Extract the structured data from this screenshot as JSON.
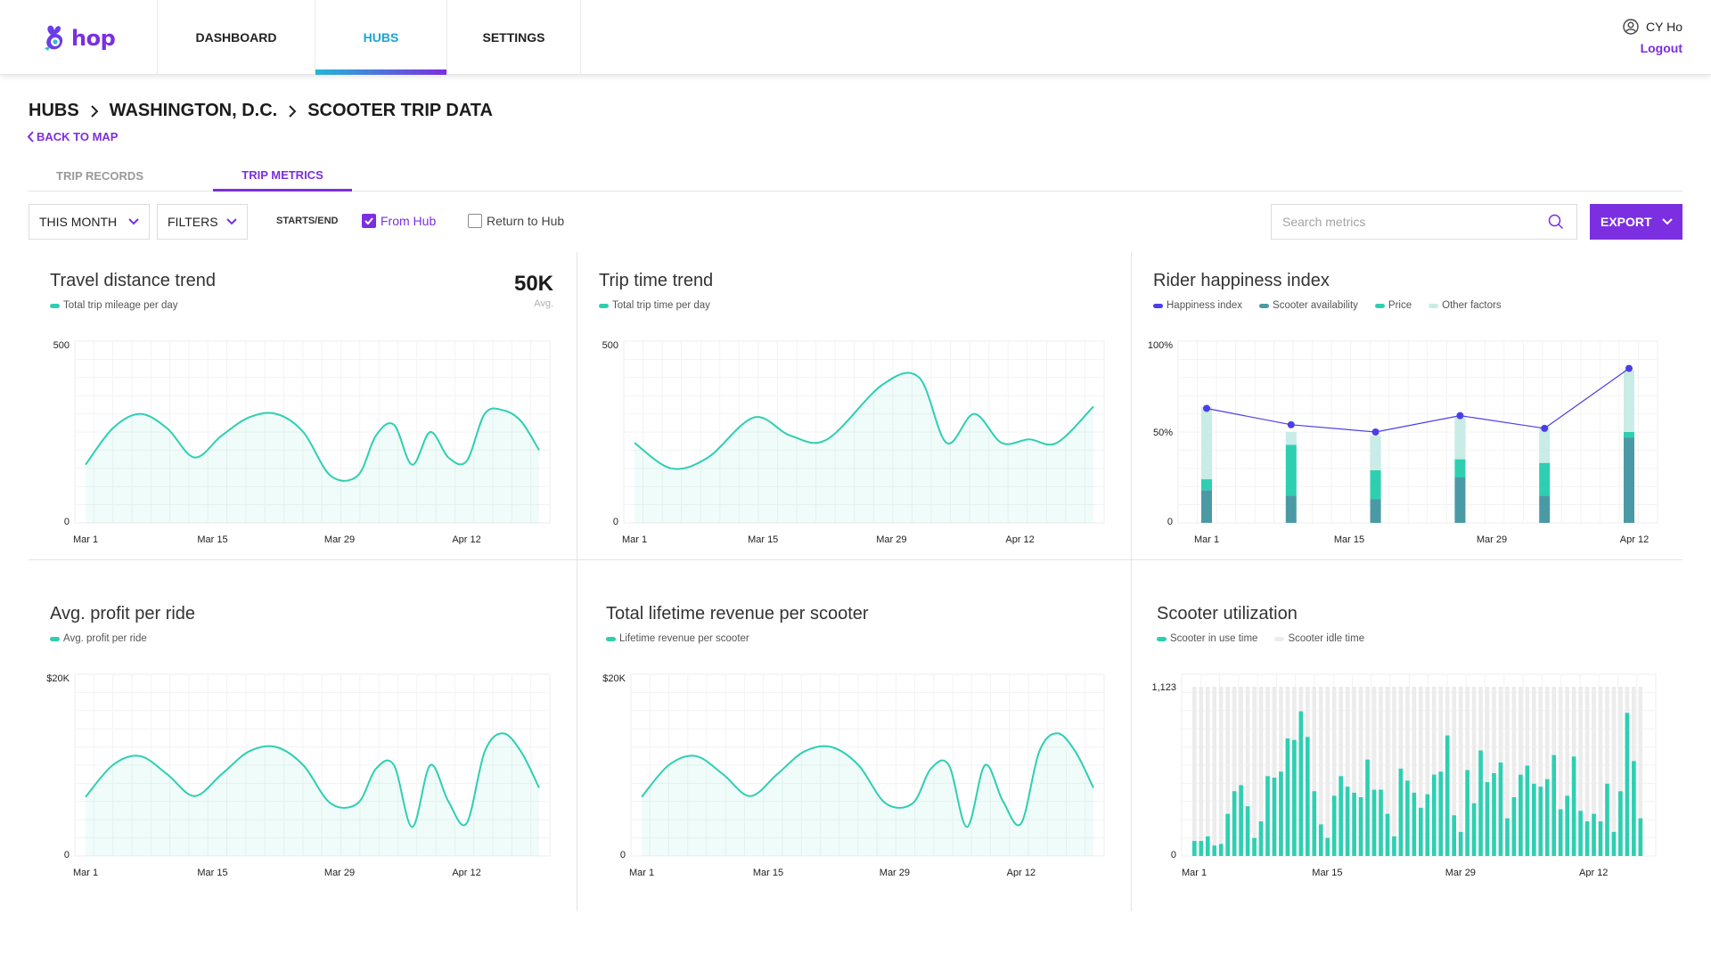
{
  "app": {
    "logo_text": "hop"
  },
  "nav": {
    "items": [
      {
        "label": "DASHBOARD"
      },
      {
        "label": "HUBS"
      },
      {
        "label": "SETTINGS"
      }
    ],
    "active": "HUBS"
  },
  "user": {
    "name": "CY Ho",
    "logout": "Logout"
  },
  "breadcrumb": {
    "items": [
      "HUBS",
      "WASHINGTON, D.C.",
      "SCOOTER TRIP DATA"
    ]
  },
  "back_link": "BACK TO MAP",
  "tabs": {
    "items": [
      {
        "label": "TRIP RECORDS"
      },
      {
        "label": "TRIP METRICS"
      }
    ],
    "active": "TRIP METRICS"
  },
  "toolbar": {
    "period_select": "THIS MONTH",
    "filters_select": "FILTERS",
    "starts_end_label": "STARTS/END",
    "from_hub": {
      "label": "From Hub",
      "checked": true
    },
    "return_to_hub": {
      "label": "Return to Hub",
      "checked": false
    },
    "search_placeholder": "Search metrics",
    "export_label": "EXPORT"
  },
  "colors": {
    "accent": "#7b2fe0",
    "teal": "#2ecfb1",
    "teal_dark": "#4a9aa6",
    "teal_light": "#c9ece6",
    "idle": "#ececec",
    "happiness": "#4b3ee8"
  },
  "panels": {
    "travel": {
      "title": "Travel distance trend",
      "legend": "Total trip mileage per day",
      "kpi_value": "50K",
      "kpi_label": "Avg."
    },
    "trip_time": {
      "title": "Trip time trend",
      "legend": "Total trip time per day"
    },
    "happiness": {
      "title": "Rider happiness index",
      "legend": [
        "Happiness index",
        "Scooter availability",
        "Price",
        "Other factors"
      ]
    },
    "profit": {
      "title": "Avg. profit per ride",
      "legend": "Avg. profit per ride"
    },
    "revenue": {
      "title": "Total lifetime revenue per scooter",
      "legend": "Lifetime revenue per scooter"
    },
    "utilization": {
      "title": "Scooter utilization",
      "legend": [
        "Scooter in use time",
        "Scooter idle time"
      ]
    }
  },
  "chart_data": [
    {
      "id": "travel",
      "type": "area",
      "title": "Travel distance trend",
      "series_name": "Total trip mileage per day",
      "x": [
        0,
        3,
        6,
        9,
        12,
        15,
        18,
        21,
        24,
        27,
        30,
        32,
        34,
        36,
        38,
        40,
        42,
        44,
        46,
        48,
        50
      ],
      "y": [
        160,
        260,
        300,
        260,
        180,
        240,
        290,
        300,
        250,
        130,
        130,
        240,
        270,
        160,
        250,
        180,
        170,
        300,
        310,
        280,
        200
      ],
      "x_ticks": [
        "Mar 1",
        "Mar 15",
        "Mar 29",
        "Apr 12"
      ],
      "x_tick_positions": [
        0,
        14,
        28,
        42
      ],
      "x_range": [
        0,
        50
      ],
      "y_ticks": [
        "0",
        "500"
      ],
      "ylim": [
        0,
        500
      ]
    },
    {
      "id": "trip_time",
      "type": "area",
      "title": "Trip time trend",
      "series_name": "Total trip time per day",
      "x": [
        0,
        4,
        8,
        13,
        17,
        21,
        27,
        31,
        34,
        37,
        40,
        43,
        46,
        50
      ],
      "y": [
        220,
        150,
        180,
        290,
        240,
        230,
        380,
        400,
        220,
        300,
        220,
        230,
        220,
        320
      ],
      "x_ticks": [
        "Mar 1",
        "Mar 15",
        "Mar 29",
        "Apr 12"
      ],
      "x_tick_positions": [
        0,
        14,
        28,
        42
      ],
      "x_range": [
        0,
        50
      ],
      "y_ticks": [
        "0",
        "500"
      ],
      "ylim": [
        0,
        500
      ]
    },
    {
      "id": "happiness",
      "type": "bar",
      "title": "Rider happiness index",
      "categories": [
        "1",
        "2",
        "3",
        "4",
        "5",
        "6"
      ],
      "series": [
        {
          "name": "Scooter availability",
          "values": [
            18,
            15,
            13,
            25,
            15,
            47
          ]
        },
        {
          "name": "Price",
          "values": [
            6,
            28,
            16,
            10,
            18,
            3
          ]
        },
        {
          "name": "Other factors",
          "values": [
            40,
            7,
            19,
            23,
            20,
            34
          ]
        },
        {
          "name": "Happiness index",
          "values": [
            63,
            54,
            50,
            59,
            52,
            85
          ]
        }
      ],
      "x_ticks": [
        "Mar 1",
        "Mar 15",
        "Mar 29",
        "Apr 12"
      ],
      "y_ticks": [
        "0",
        "50%",
        "100%"
      ],
      "ylim": [
        0,
        100
      ]
    },
    {
      "id": "profit",
      "type": "area",
      "title": "Avg. profit per ride",
      "series_name": "Avg. profit per ride",
      "x": [
        0,
        3,
        6,
        9,
        12,
        15,
        18,
        21,
        24,
        27,
        30,
        32,
        34,
        36,
        38,
        40,
        42,
        44,
        46,
        48,
        50
      ],
      "y": [
        6500,
        10000,
        11000,
        9000,
        6600,
        9000,
        11500,
        12000,
        10000,
        5800,
        5800,
        9600,
        10000,
        3200,
        10000,
        6000,
        3600,
        11500,
        13500,
        11500,
        7500
      ],
      "x_ticks": [
        "Mar 1",
        "Mar 15",
        "Mar 29",
        "Apr 12"
      ],
      "x_tick_positions": [
        0,
        14,
        28,
        42
      ],
      "x_range": [
        0,
        50
      ],
      "y_ticks": [
        "0",
        "$20K"
      ],
      "ylim": [
        0,
        20000
      ]
    },
    {
      "id": "revenue",
      "type": "area",
      "title": "Total lifetime revenue per scooter",
      "series_name": "Lifetime revenue per scooter",
      "x": [
        0,
        3,
        6,
        9,
        12,
        15,
        18,
        21,
        24,
        27,
        30,
        32,
        34,
        36,
        38,
        40,
        42,
        44,
        46,
        48,
        50
      ],
      "y": [
        6500,
        10000,
        11000,
        9000,
        6600,
        9000,
        11500,
        12000,
        10000,
        5800,
        5800,
        9600,
        10000,
        3200,
        10000,
        6000,
        3600,
        11500,
        13500,
        11500,
        7500
      ],
      "x_ticks": [
        "Mar 1",
        "Mar 15",
        "Mar 29",
        "Apr 12"
      ],
      "x_tick_positions": [
        0,
        14,
        28,
        42
      ],
      "x_range": [
        0,
        50
      ],
      "y_ticks": [
        "0",
        "$20K"
      ],
      "ylim": [
        0,
        20000
      ]
    },
    {
      "id": "utilization",
      "type": "bar",
      "title": "Scooter utilization",
      "series": [
        {
          "name": "Scooter in use time",
          "values": [
            100,
            100,
            130,
            70,
            80,
            280,
            430,
            470,
            330,
            120,
            230,
            530,
            520,
            560,
            780,
            770,
            960,
            790,
            430,
            210,
            120,
            400,
            530,
            460,
            420,
            390,
            640,
            440,
            440,
            280,
            130,
            580,
            500,
            420,
            320,
            410,
            540,
            560,
            800,
            270,
            160,
            570,
            350,
            700,
            490,
            550,
            620,
            250,
            390,
            540,
            600,
            480,
            460,
            510,
            670,
            310,
            400,
            660,
            300,
            230,
            280,
            230,
            480,
            160,
            430,
            950,
            630,
            250
          ]
        },
        {
          "name": "Scooter idle time",
          "values": [
            1123,
            1123,
            1123,
            1123,
            1123,
            1123,
            1123,
            1123,
            1123,
            1123,
            1123,
            1123,
            1123,
            1123,
            1123,
            1123,
            1123,
            1123,
            1123,
            1123,
            1123,
            1123,
            1123,
            1123,
            1123,
            1123,
            1123,
            1123,
            1123,
            1123,
            1123,
            1123,
            1123,
            1123,
            1123,
            1123,
            1123,
            1123,
            1123,
            1123,
            1123,
            1123,
            1123,
            1123,
            1123,
            1123,
            1123,
            1123,
            1123,
            1123,
            1123,
            1123,
            1123,
            1123,
            1123,
            1123,
            1123,
            1123,
            1123,
            1123,
            1123,
            1123,
            1123,
            1123,
            1123,
            1123,
            1123,
            1123
          ]
        }
      ],
      "x_ticks": [
        "Mar 1",
        "Mar 15",
        "Mar 29",
        "Apr 12"
      ],
      "y_ticks": [
        "0",
        "1,123"
      ],
      "ylim": [
        0,
        1123
      ]
    }
  ]
}
